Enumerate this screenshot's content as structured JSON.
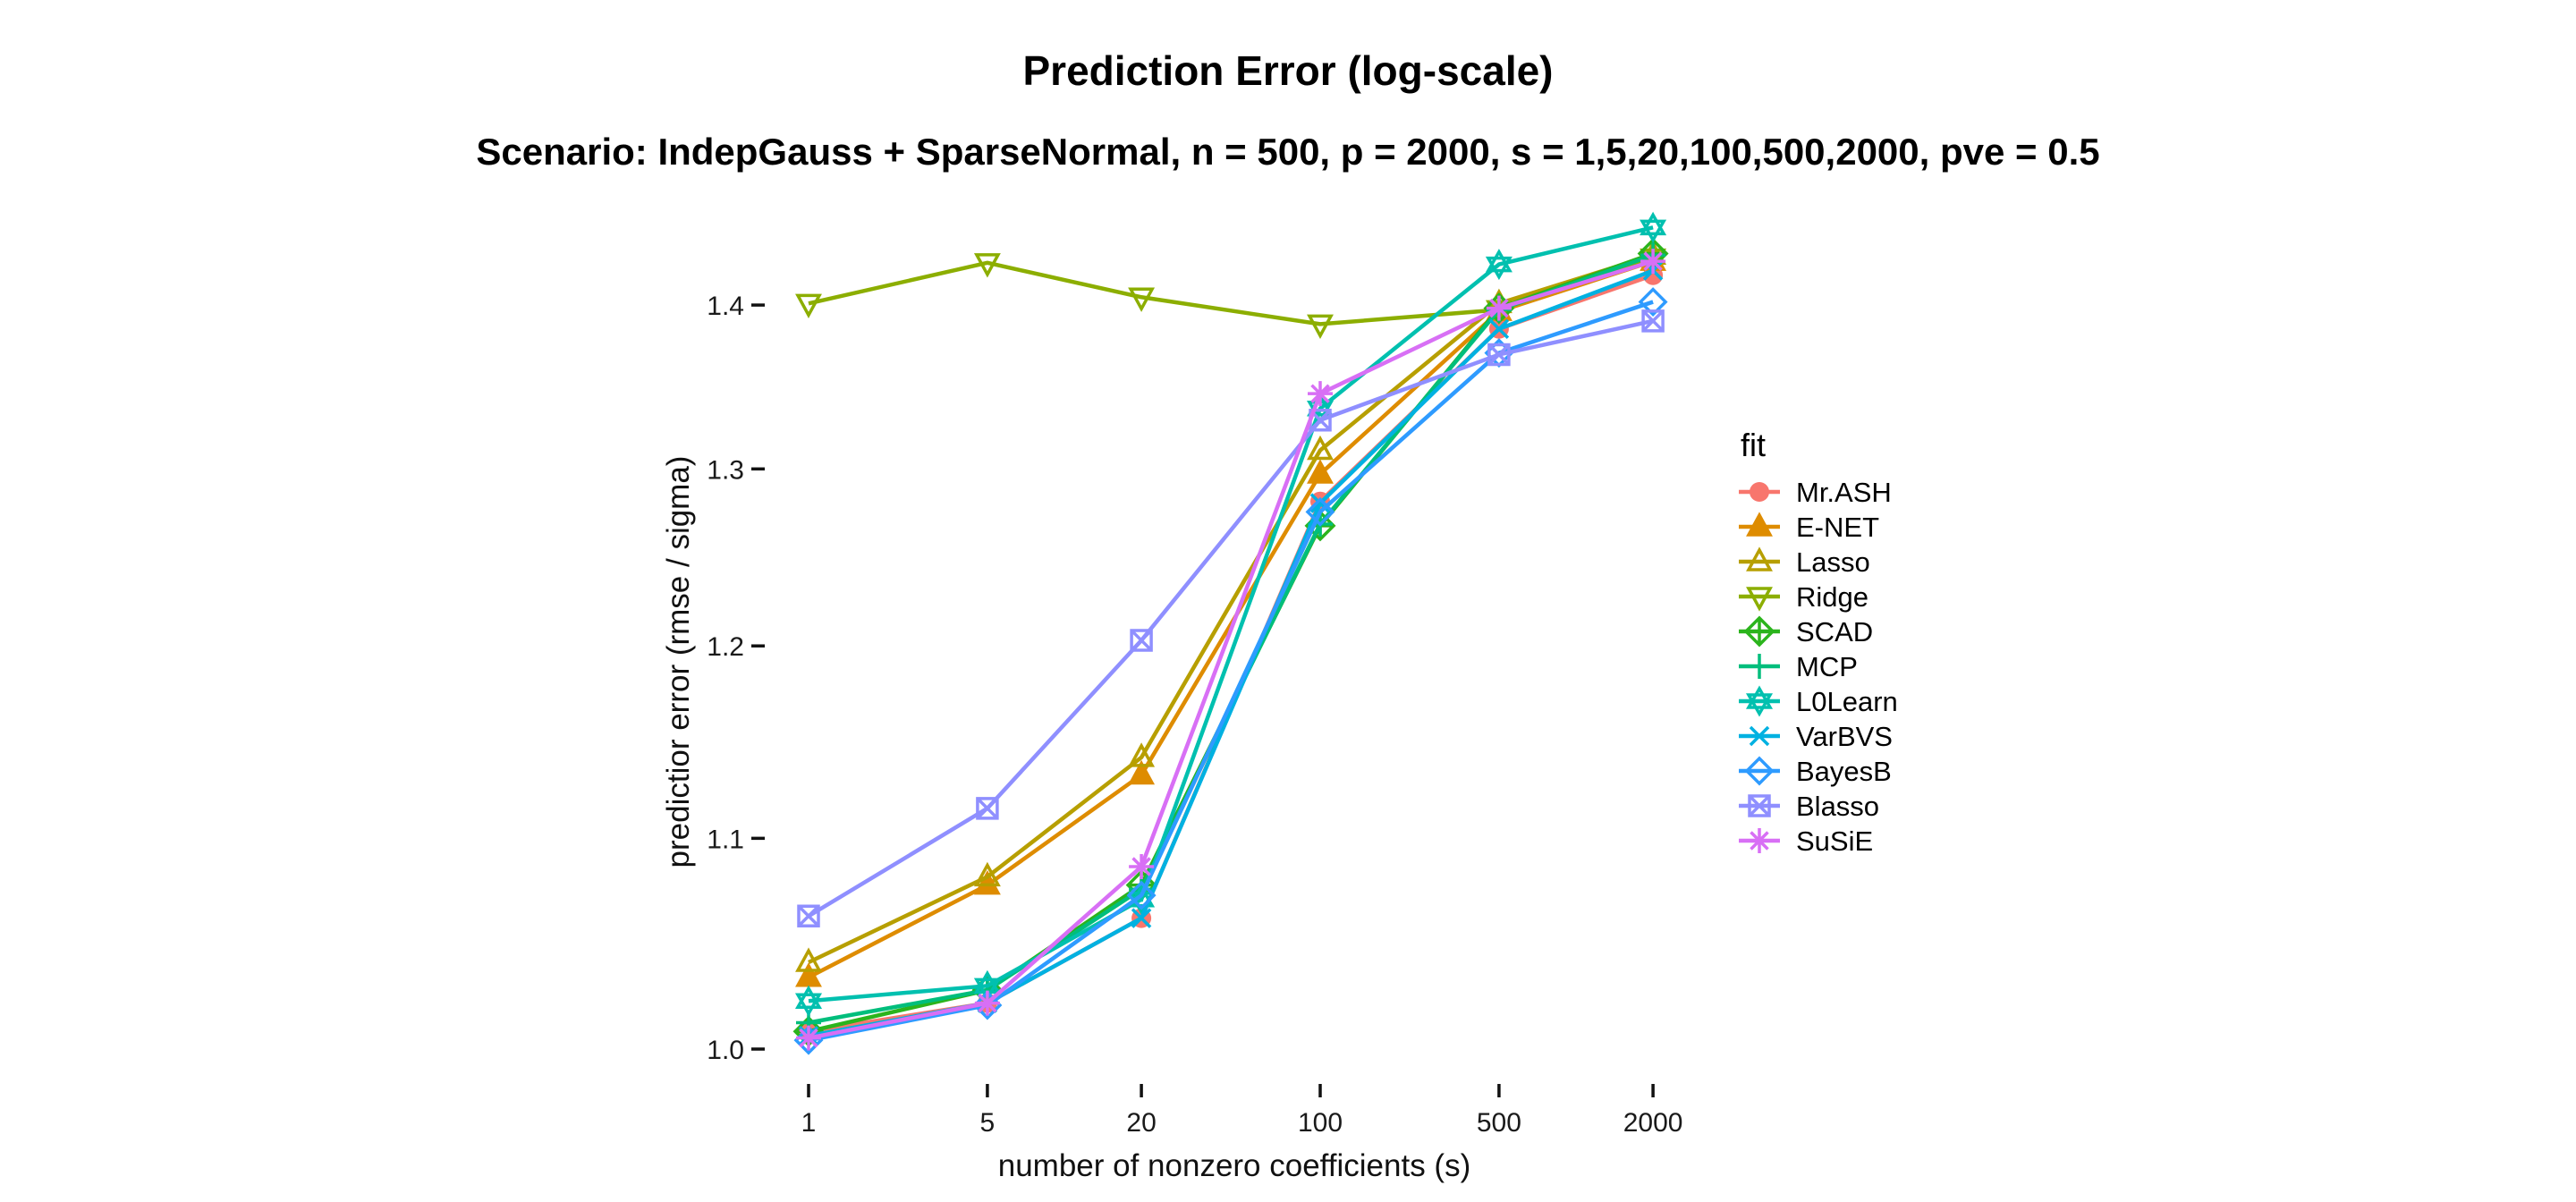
{
  "page": {
    "title": "Prediction Error (log-scale)",
    "subtitle": "Scenario: IndepGauss + SparseNormal, n = 500, p = 2000, s = 1,5,20,100,500,2000, pve = 0.5"
  },
  "chart_data": {
    "type": "line",
    "title": "Prediction Error (log-scale)",
    "subtitle": "Scenario: IndepGauss + SparseNormal, n = 500, p = 2000, s = 1,5,20,100,500,2000, pve = 0.5",
    "xlabel": "number of nonzero coefficients (s)",
    "ylabel": "predictior error (rmse / sigma)",
    "x_scale": "log10",
    "y_scale": "log10",
    "grid": false,
    "x": [
      1,
      5,
      20,
      100,
      500,
      2000
    ],
    "x_tick_labels": [
      "1",
      "5",
      "20",
      "100",
      "500",
      "2000"
    ],
    "y_ticks": [
      1.0,
      1.1,
      1.2,
      1.3,
      1.4
    ],
    "y_tick_labels": [
      "1.0",
      "1.1",
      "1.2",
      "1.3",
      "1.4"
    ],
    "ylim": [
      1.0,
      1.45
    ],
    "legend_title": "fit",
    "legend_position": "right",
    "series": [
      {
        "name": "Mr.ASH",
        "color": "#F8766D",
        "shape": "filled-circle",
        "values": [
          1.008,
          1.021,
          1.061,
          1.281,
          1.385,
          1.419
        ]
      },
      {
        "name": "E-NET",
        "color": "#DE8C00",
        "shape": "filled-triangle-up",
        "values": [
          1.033,
          1.077,
          1.132,
          1.297,
          1.396,
          1.428
        ]
      },
      {
        "name": "Lasso",
        "color": "#B79F00",
        "shape": "open-triangle-up",
        "values": [
          1.04,
          1.081,
          1.141,
          1.311,
          1.401,
          1.432
        ]
      },
      {
        "name": "Ridge",
        "color": "#8CAE00",
        "shape": "open-triangle-down",
        "values": [
          1.401,
          1.427,
          1.405,
          1.388,
          1.397,
          1.43
        ]
      },
      {
        "name": "SCAD",
        "color": "#2BB41C",
        "shape": "diamond-plus",
        "values": [
          1.008,
          1.027,
          1.077,
          1.267,
          1.398,
          1.433
        ]
      },
      {
        "name": "MCP",
        "color": "#00BE7C",
        "shape": "plus",
        "values": [
          1.012,
          1.027,
          1.075,
          1.268,
          1.397,
          1.432
        ]
      },
      {
        "name": "L0Learn",
        "color": "#00C0AF",
        "shape": "star-of-david",
        "values": [
          1.022,
          1.029,
          1.07,
          1.336,
          1.426,
          1.45
        ]
      },
      {
        "name": "VarBVS",
        "color": "#00B1E1",
        "shape": "x-cross",
        "values": [
          1.006,
          1.021,
          1.061,
          1.28,
          1.385,
          1.422
        ]
      },
      {
        "name": "BayesB",
        "color": "#2E9BFF",
        "shape": "open-diamond",
        "values": [
          1.004,
          1.02,
          1.072,
          1.275,
          1.37,
          1.402
        ]
      },
      {
        "name": "Blasso",
        "color": "#8F8FFF",
        "shape": "square-cross",
        "values": [
          1.062,
          1.115,
          1.203,
          1.329,
          1.369,
          1.39
        ]
      },
      {
        "name": "SuSiE",
        "color": "#D86FF5",
        "shape": "asterisk",
        "values": [
          1.005,
          1.021,
          1.086,
          1.345,
          1.398,
          1.428
        ]
      }
    ]
  }
}
